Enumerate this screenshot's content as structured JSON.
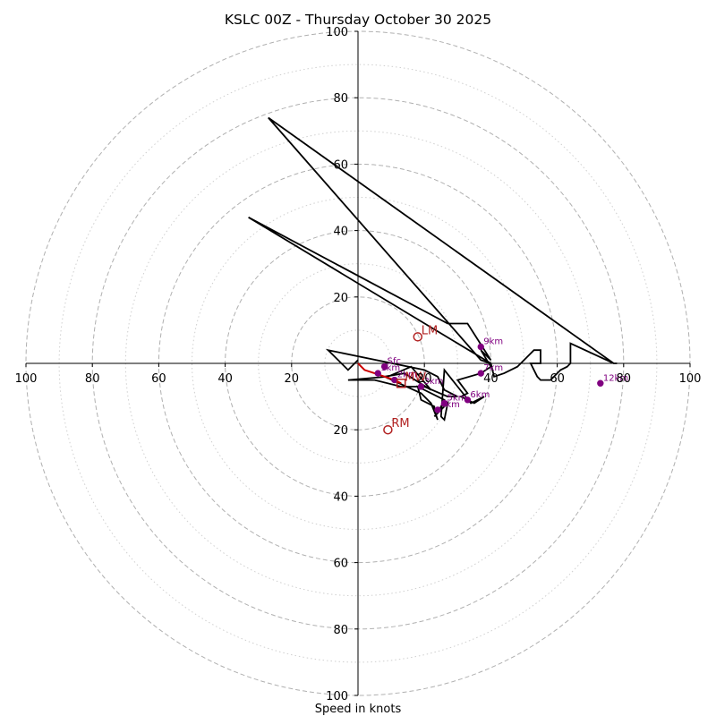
{
  "chart_data": {
    "type": "hodograph",
    "title": "KSLC 00Z - Thursday October 30 2025",
    "xlabel": "Speed in knots",
    "max_speed": 100,
    "major_rings": [
      20,
      40,
      60,
      80,
      100
    ],
    "minor_rings": [
      10,
      30,
      50,
      70,
      90
    ],
    "x_tick_labels": [
      "100",
      "80",
      "60",
      "40",
      "20",
      "20",
      "40",
      "60",
      "80",
      "100"
    ],
    "y_tick_labels": [
      "100",
      "80",
      "60",
      "40",
      "20",
      "20",
      "40",
      "60",
      "80",
      "100"
    ],
    "x_tick_values": [
      -100,
      -80,
      -60,
      -40,
      -20,
      20,
      40,
      60,
      80,
      100
    ],
    "y_tick_values": [
      100,
      80,
      60,
      40,
      20,
      -20,
      -40,
      -60,
      -80,
      -100
    ],
    "wind_trace_uv": [
      [
        0,
        1
      ],
      [
        -3,
        -2
      ],
      [
        -9,
        4
      ],
      [
        20,
        -2
      ],
      [
        24,
        -4
      ],
      [
        26,
        -8
      ],
      [
        28,
        -9
      ],
      [
        30,
        -10
      ],
      [
        27,
        -10
      ],
      [
        20,
        -7
      ],
      [
        13,
        -7
      ],
      [
        5,
        -5
      ],
      [
        -3,
        -5
      ],
      [
        9,
        -4
      ],
      [
        16,
        -1
      ],
      [
        22,
        -8
      ],
      [
        14,
        -3
      ],
      [
        8,
        -4
      ],
      [
        19,
        -9
      ],
      [
        22,
        -12
      ],
      [
        24,
        -17
      ],
      [
        23,
        -14
      ],
      [
        23,
        -13
      ],
      [
        19,
        -11
      ],
      [
        18,
        -7
      ],
      [
        26,
        -11
      ],
      [
        24,
        -15
      ],
      [
        23,
        -16
      ],
      [
        27,
        -12
      ],
      [
        26,
        -17
      ],
      [
        25,
        -16
      ],
      [
        26,
        -2
      ],
      [
        30,
        -7
      ],
      [
        34,
        -12
      ],
      [
        38,
        -10
      ],
      [
        35,
        -12
      ],
      [
        31,
        -10
      ],
      [
        33,
        -9
      ],
      [
        30,
        -5
      ],
      [
        37,
        -3
      ],
      [
        40,
        -1
      ],
      [
        37,
        4
      ],
      [
        40,
        1
      ],
      [
        33,
        12
      ],
      [
        27,
        12
      ],
      [
        -33,
        44
      ],
      [
        40,
        0
      ],
      [
        41,
        -4
      ],
      [
        44,
        -3
      ],
      [
        48,
        -1
      ],
      [
        51,
        2
      ],
      [
        53,
        4
      ],
      [
        55,
        4
      ],
      [
        55,
        0
      ],
      [
        52,
        0
      ],
      [
        54,
        -4
      ],
      [
        55,
        -5
      ],
      [
        58,
        -5
      ],
      [
        61,
        -2
      ],
      [
        63,
        -1
      ],
      [
        64,
        0
      ],
      [
        64,
        6
      ],
      [
        77,
        0
      ],
      [
        78,
        0
      ],
      [
        77,
        0
      ],
      [
        -27,
        74
      ],
      [
        37,
        1
      ],
      [
        40,
        0
      ]
    ],
    "storm_motion_uv": [
      [
        0,
        0
      ],
      [
        2,
        -2
      ],
      [
        5,
        -3
      ],
      [
        8,
        -4
      ],
      [
        11,
        -5
      ],
      [
        13,
        -6
      ]
    ],
    "height_markers": [
      {
        "label": "Sfc",
        "u": 8,
        "v": -1
      },
      {
        "label": "1km",
        "u": 6,
        "v": -3
      },
      {
        "label": "2km",
        "u": 11,
        "v": -5
      },
      {
        "label": "3km",
        "u": 19,
        "v": -7
      },
      {
        "label": "4km",
        "u": 24,
        "v": -14
      },
      {
        "label": "5km",
        "u": 26,
        "v": -12
      },
      {
        "label": "6km",
        "u": 33,
        "v": -11
      },
      {
        "label": "7km",
        "u": 37,
        "v": -3
      },
      {
        "label": "9km",
        "u": 37,
        "v": 5
      },
      {
        "label": "12km",
        "u": 73,
        "v": -6
      }
    ],
    "motion_markers": [
      {
        "label": "LM",
        "u": 18,
        "v": 8,
        "shape": "circle"
      },
      {
        "label": "RM",
        "u": 9,
        "v": -20,
        "shape": "circle"
      },
      {
        "label": "MW",
        "u": 13,
        "v": -6,
        "shape": "square"
      }
    ],
    "colors": {
      "trace": "#000000",
      "storm_motion": "#cc0000",
      "height_marker": "#800080",
      "motion_marker": "#b22222",
      "rings": "#b0b0b0"
    }
  }
}
